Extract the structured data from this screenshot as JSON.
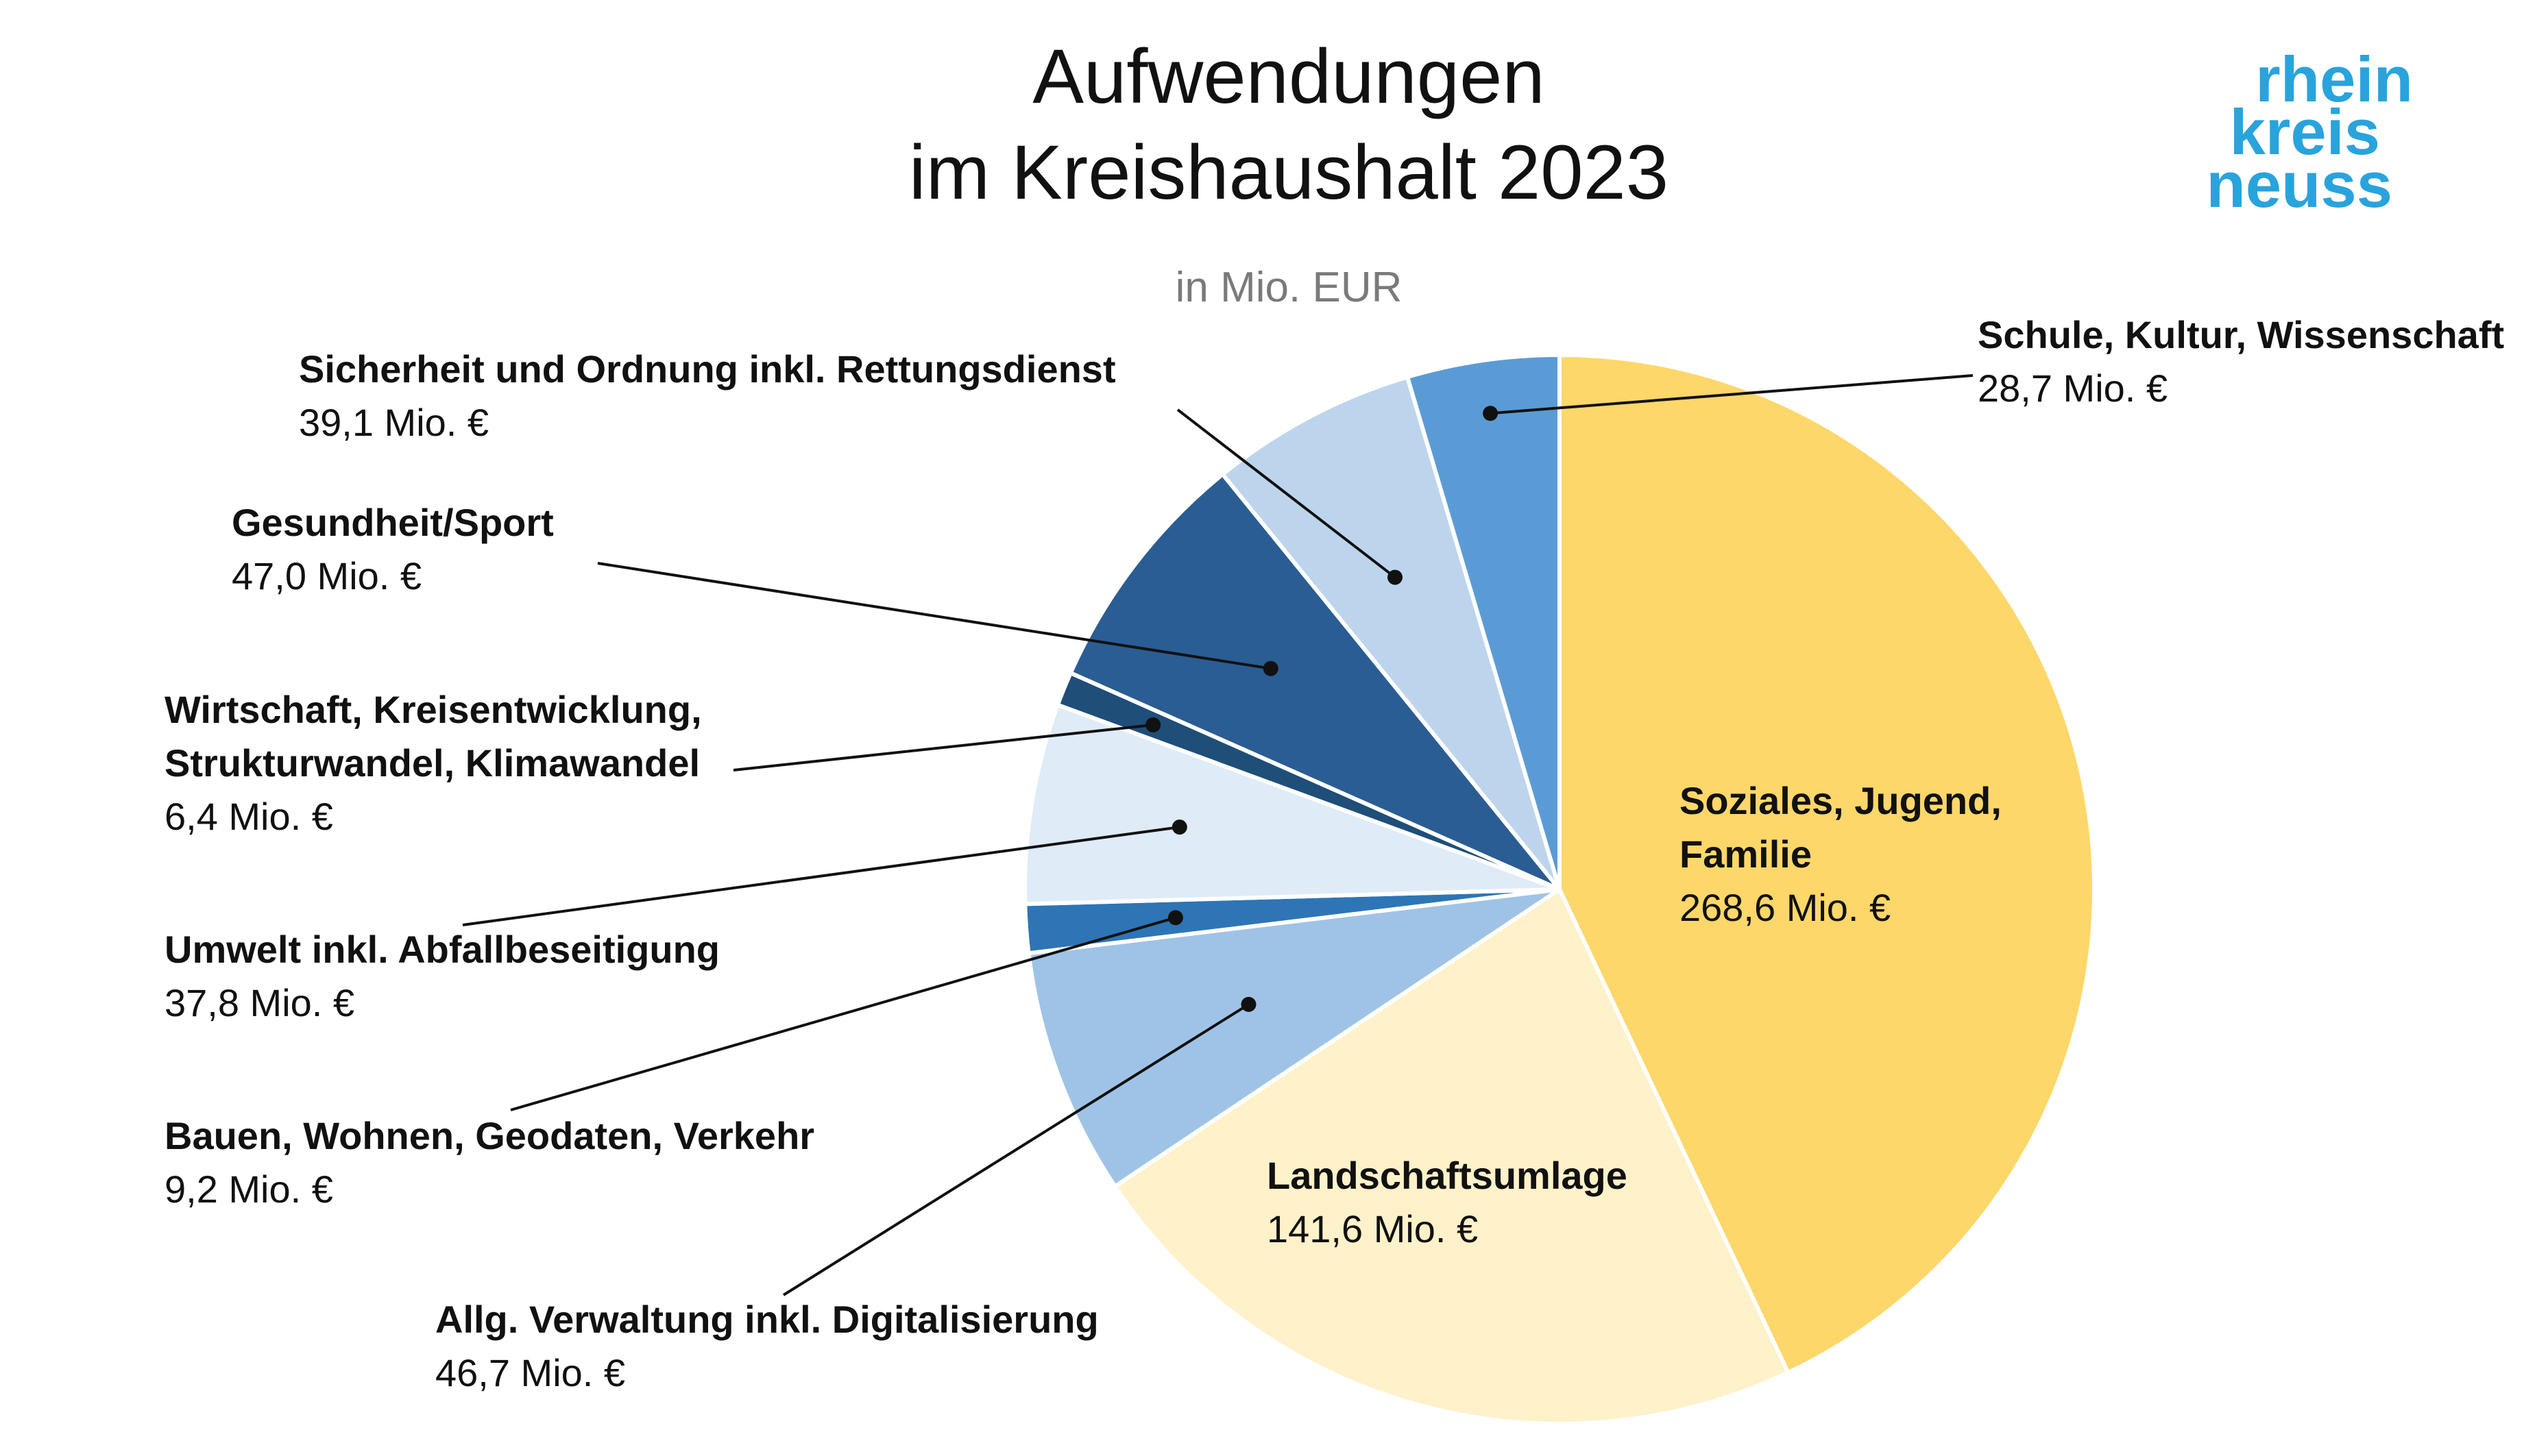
{
  "title_line1": "Aufwendungen",
  "title_line2": "im Kreishaushalt 2023",
  "subtitle": "in Mio. EUR",
  "logo": {
    "line1": "rhein",
    "line2": "kreis",
    "line3": "neuss",
    "color": "#29a3dc"
  },
  "chart_data": {
    "type": "pie",
    "unit": "Mio. €",
    "start_angle_deg": 0,
    "direction": "clockwise",
    "slices": [
      {
        "name_lines": [
          "Soziales, Jugend,",
          "Familie"
        ],
        "value": 268.6,
        "value_label": "268,6 Mio. €",
        "color": "#fdd76a",
        "label_inside": true
      },
      {
        "name_lines": [
          "Landschaftsumlage"
        ],
        "value": 141.6,
        "value_label": "141,6 Mio. €",
        "color": "#fff1c9",
        "label_inside": true
      },
      {
        "name_lines": [
          "Allg. Verwaltung inkl. Digitalisierung"
        ],
        "value": 46.7,
        "value_label": "46,7 Mio. €",
        "color": "#9fc3e6",
        "label_inside": false
      },
      {
        "name_lines": [
          "Bauen, Wohnen, Geodaten, Verkehr"
        ],
        "value": 9.2,
        "value_label": "9,2 Mio. €",
        "color": "#2e75b6",
        "label_inside": false
      },
      {
        "name_lines": [
          "Umwelt inkl. Abfallbeseitigung"
        ],
        "value": 37.8,
        "value_label": "37,8 Mio. €",
        "color": "#dfebf7",
        "label_inside": false
      },
      {
        "name_lines": [
          "Wirtschaft, Kreisentwicklung,",
          "Strukturwandel, Klimawandel"
        ],
        "value": 6.4,
        "value_label": "6,4 Mio. €",
        "color": "#1f4e79",
        "label_inside": false
      },
      {
        "name_lines": [
          "Gesundheit/Sport"
        ],
        "value": 47.0,
        "value_label": "47,0 Mio. €",
        "color": "#2a5d93",
        "label_inside": false
      },
      {
        "name_lines": [
          "Sicherheit und Ordnung inkl. Rettungsdienst"
        ],
        "value": 39.1,
        "value_label": "39,1 Mio. €",
        "color": "#bdd5ec",
        "label_inside": false
      },
      {
        "name_lines": [
          "Schule, Kultur, Wissenschaft"
        ],
        "value": 28.7,
        "value_label": "28,7 Mio. €",
        "color": "#5b9bd5",
        "label_inside": false
      }
    ]
  }
}
